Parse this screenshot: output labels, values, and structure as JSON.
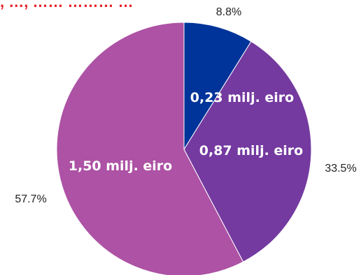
{
  "chart_data": {
    "type": "pie",
    "title": ", …, …… ……… …",
    "slices": [
      {
        "value": 0.23,
        "percent": "8.8%",
        "label": "0,23 milj. eiro",
        "color": "#00349a"
      },
      {
        "value": 0.87,
        "percent": "33.5%",
        "label": "0,87 milj. eiro",
        "color": "#743aa0"
      },
      {
        "value": 1.5,
        "percent": "57.7%",
        "label": "1,50 milj. eiro",
        "color": "#ad52a5"
      }
    ],
    "legend": "none"
  }
}
